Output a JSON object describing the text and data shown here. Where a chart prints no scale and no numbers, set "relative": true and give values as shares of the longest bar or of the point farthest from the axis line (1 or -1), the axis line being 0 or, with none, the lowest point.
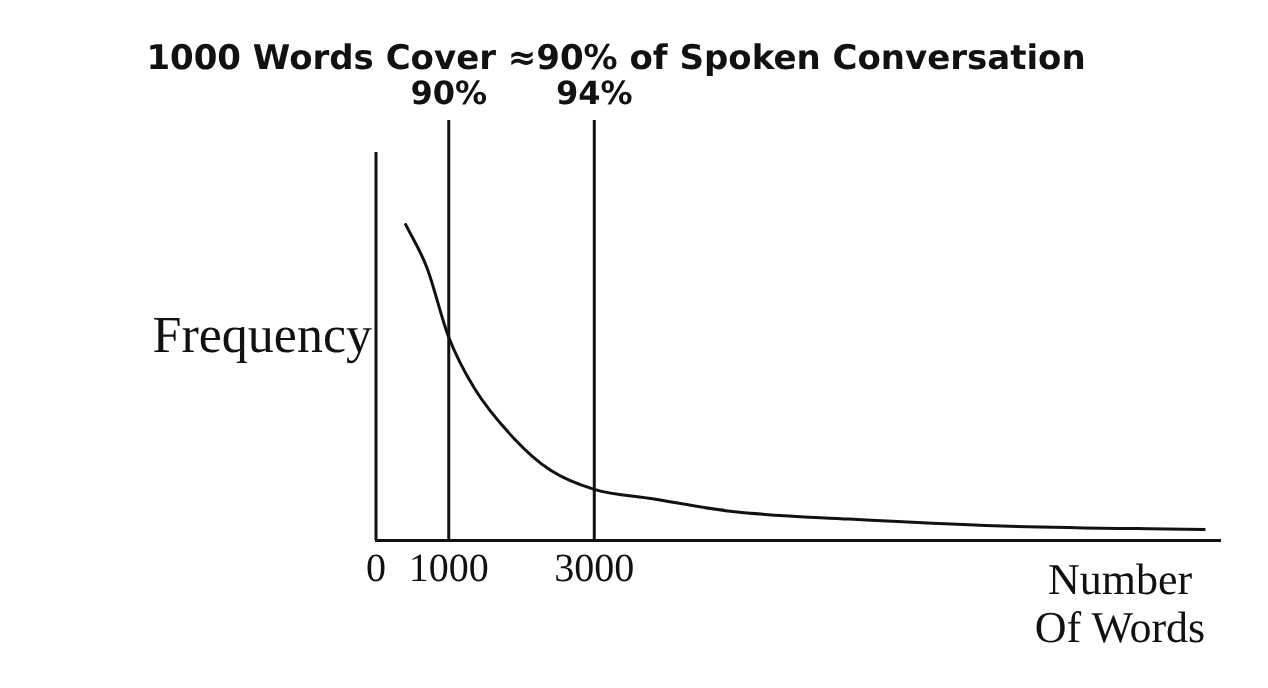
{
  "chart_data": {
    "type": "line",
    "title": "1000 Words Cover ≈90% of Spoken Conversation",
    "xlabel": "Number Of Words",
    "ylabel": "Frequency",
    "relative": true,
    "xlim": [
      0,
      11600
    ],
    "xticks": [
      0,
      1000,
      3000
    ],
    "grid": false,
    "legend": false,
    "marker": "none",
    "series": [
      {
        "color": "#111111",
        "x": [
          400,
          700,
          1000,
          1350,
          1900,
          2400,
          3000,
          3800,
          4900,
          6500,
          8600,
          11400
        ],
        "values": [
          1,
          0.86,
          0.64,
          0.48,
          0.32,
          0.22,
          0.16,
          0.13,
          0.09,
          0.066,
          0.044,
          0.033
        ]
      }
    ],
    "ref_lines": [
      {
        "axis": "x",
        "value": 1000,
        "color": "#111111"
      },
      {
        "axis": "x",
        "value": 3000,
        "color": "#111111"
      }
    ],
    "annotations": [
      "90%",
      "94%"
    ]
  }
}
